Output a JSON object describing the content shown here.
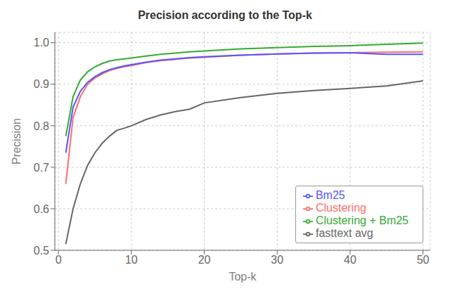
{
  "chart_data": {
    "type": "line",
    "title": "Precision according to the Top-k",
    "xlabel": "Top-k",
    "ylabel": "Precision",
    "x": [
      1,
      2,
      3,
      4,
      5,
      6,
      7,
      8,
      9,
      10,
      12,
      14,
      16,
      18,
      20,
      25,
      30,
      35,
      40,
      45,
      50
    ],
    "series": [
      {
        "name": "Clustering",
        "color": "#FF6B6B",
        "values": [
          0.66,
          0.82,
          0.87,
          0.9,
          0.915,
          0.925,
          0.933,
          0.938,
          0.942,
          0.945,
          0.952,
          0.957,
          0.96,
          0.963,
          0.965,
          0.97,
          0.973,
          0.975,
          0.976,
          0.977,
          0.978
        ]
      },
      {
        "name": "Bm25",
        "color": "#5555FF",
        "values": [
          0.735,
          0.845,
          0.883,
          0.905,
          0.918,
          0.928,
          0.935,
          0.94,
          0.944,
          0.947,
          0.953,
          0.958,
          0.961,
          0.964,
          0.966,
          0.97,
          0.973,
          0.975,
          0.976,
          0.972,
          0.972
        ]
      },
      {
        "name": "Clustering + Bm25",
        "color": "#33AA33",
        "values": [
          0.775,
          0.87,
          0.91,
          0.93,
          0.942,
          0.95,
          0.956,
          0.959,
          0.961,
          0.963,
          0.968,
          0.972,
          0.975,
          0.978,
          0.98,
          0.985,
          0.988,
          0.991,
          0.993,
          0.996,
          0.999
        ]
      },
      {
        "name": "fasttext avg",
        "color": "#666666",
        "values": [
          0.515,
          0.6,
          0.66,
          0.705,
          0.735,
          0.758,
          0.775,
          0.789,
          0.794,
          0.8,
          0.815,
          0.826,
          0.834,
          0.84,
          0.855,
          0.868,
          0.878,
          0.885,
          0.89,
          0.896,
          0.908
        ]
      }
    ],
    "xlim": [
      -0.5,
      51
    ],
    "ylim": [
      0.5,
      1.025
    ],
    "xticks": [
      0,
      10,
      20,
      30,
      40,
      50
    ],
    "yticks": [
      0.5,
      0.6,
      0.7,
      0.8,
      0.9,
      {
        "value": 1.0,
        "label": "1.0"
      }
    ],
    "grid": true,
    "legend": "lower right"
  }
}
